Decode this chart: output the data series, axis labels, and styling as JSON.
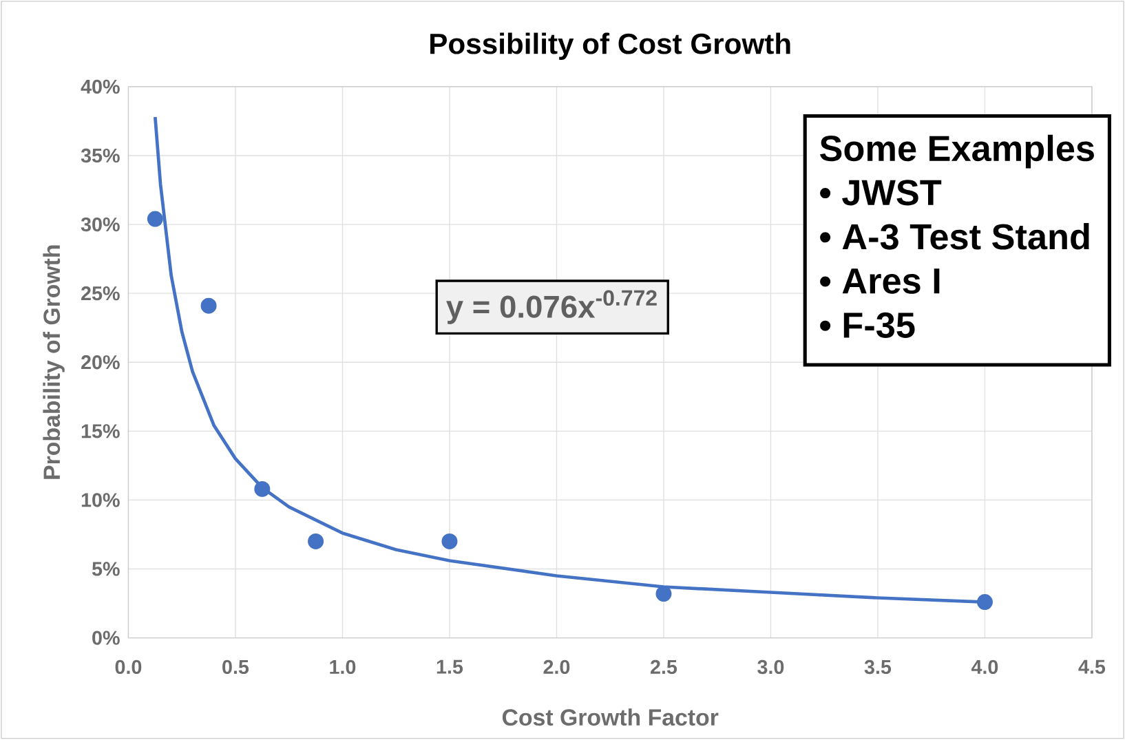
{
  "chart_data": {
    "type": "scatter",
    "title": "Possibility of Cost Growth",
    "xlabel": "Cost Growth Factor",
    "ylabel": "Probability of Growth",
    "series": [
      {
        "type": "scatter",
        "color": "#4472c4",
        "marker": "circle",
        "x": [
          0.125,
          0.375,
          0.625,
          0.875,
          1.5,
          2.5,
          4.0
        ],
        "values": [
          30.4,
          24.1,
          10.8,
          7.0,
          7.0,
          3.2,
          2.6
        ]
      },
      {
        "type": "line",
        "color": "#4472c4",
        "marker": "none",
        "x": [
          0.125,
          0.15,
          0.2,
          0.25,
          0.3,
          0.4,
          0.5,
          0.625,
          0.75,
          1.0,
          1.25,
          1.5,
          2.0,
          2.5,
          3.0,
          3.5,
          4.0
        ],
        "values": [
          37.8,
          32.9,
          26.3,
          22.2,
          19.3,
          15.4,
          13.0,
          10.9,
          9.5,
          7.6,
          6.4,
          5.6,
          4.5,
          3.7,
          3.3,
          2.9,
          2.6
        ]
      }
    ],
    "xlim": [
      0,
      4.5
    ],
    "xticks": [
      {
        "value": 0,
        "label": "0.0"
      },
      0.5,
      {
        "value": 1,
        "label": "1.0"
      },
      1.5,
      {
        "value": 2,
        "label": "2.0"
      },
      2.5,
      {
        "value": 3,
        "label": "3.0"
      },
      3.5,
      {
        "value": 4,
        "label": "4.0"
      },
      4.5
    ],
    "ylim": [
      0,
      40
    ],
    "yticks": [
      {
        "value": 0,
        "label": "0%"
      },
      {
        "value": 5,
        "label": "5%"
      },
      {
        "value": 10,
        "label": "10%"
      },
      {
        "value": 15,
        "label": "15%"
      },
      {
        "value": 20,
        "label": "20%"
      },
      {
        "value": 25,
        "label": "25%"
      },
      {
        "value": 30,
        "label": "30%"
      },
      {
        "value": 35,
        "label": "35%"
      },
      {
        "value": 40,
        "label": "40%"
      }
    ],
    "grid": true,
    "annotations": [
      "y = 0.076x$^{-0.772}$",
      "Some Examples",
      "• JWST",
      "• A-3 Test Stand",
      "• Ares I",
      "• F-35"
    ]
  }
}
